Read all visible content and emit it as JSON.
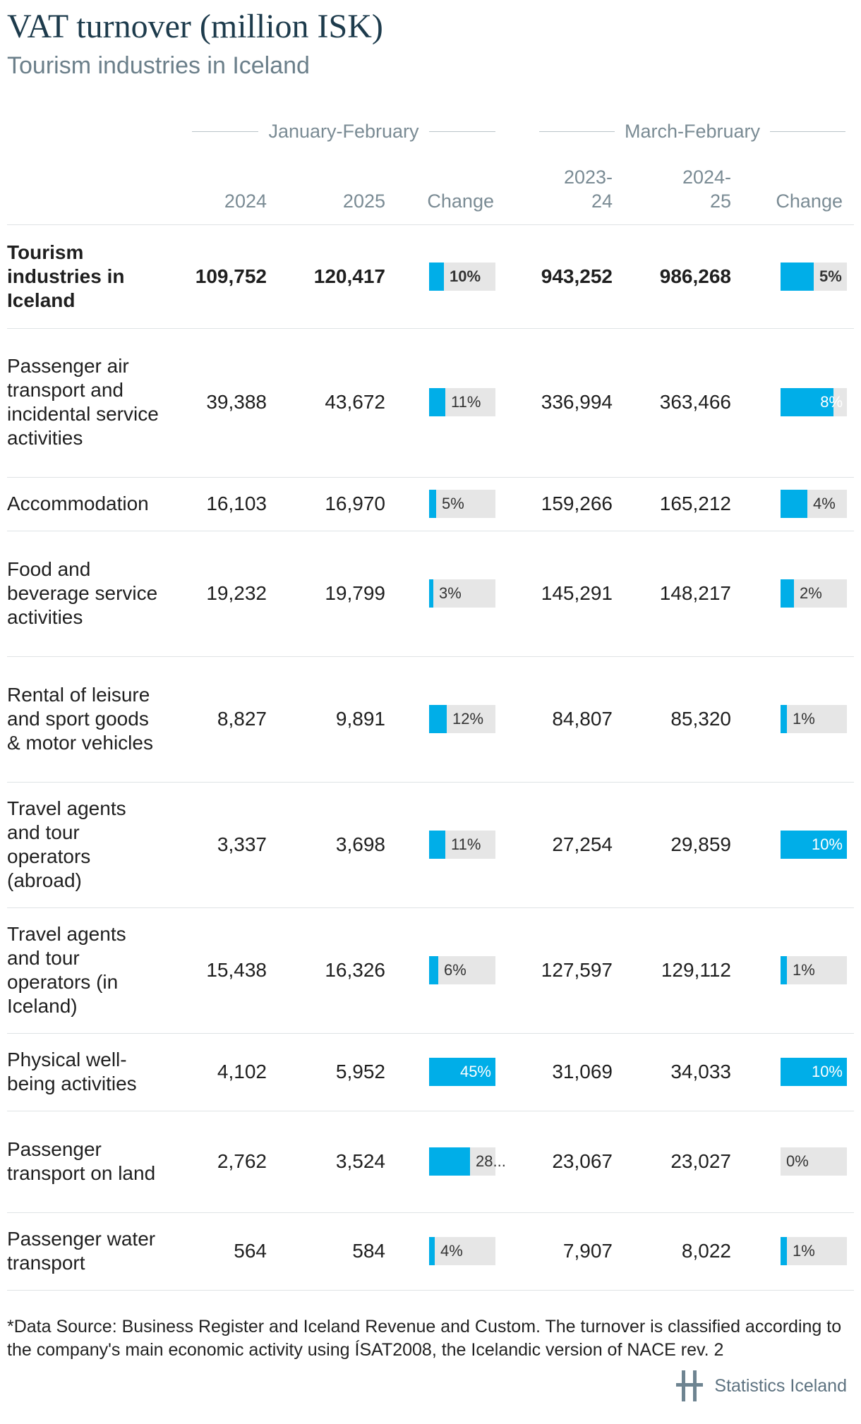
{
  "title": "VAT turnover (million ISK)",
  "subtitle": "Tourism industries in Iceland",
  "groups": {
    "left": "January-February",
    "right": "March-February"
  },
  "columns": {
    "c1": "2024",
    "c2": "2025",
    "c3": "Change",
    "c4": "2023-\n24",
    "c5": "2024-\n25",
    "c6": "Change"
  },
  "colors": {
    "bar": "#00aee8",
    "bar_track": "#e6e6e6",
    "title": "#1d3b4c"
  },
  "chart_data": {
    "type": "table",
    "title": "VAT turnover (million ISK)",
    "subtitle": "Tourism industries in Iceland",
    "rows": [
      {
        "label": "Tourism industries in Iceland",
        "bold": true,
        "jf2024": "109,752",
        "jf2025": "120,417",
        "jf_change": 10,
        "jf_change_text": "10%",
        "mf2023": "943,252",
        "mf2024": "986,268",
        "mf_change": 5,
        "mf_change_text": "5%"
      },
      {
        "label": "Passenger air transport and incidental service activities",
        "bold": false,
        "jf2024": "39,388",
        "jf2025": "43,672",
        "jf_change": 11,
        "jf_change_text": "11%",
        "mf2023": "336,994",
        "mf2024": "363,466",
        "mf_change": 8,
        "mf_change_text": "8%"
      },
      {
        "label": "Accommodation",
        "bold": false,
        "jf2024": "16,103",
        "jf2025": "16,970",
        "jf_change": 5,
        "jf_change_text": "5%",
        "mf2023": "159,266",
        "mf2024": "165,212",
        "mf_change": 4,
        "mf_change_text": "4%"
      },
      {
        "label": "Food and beverage service activities",
        "bold": false,
        "jf2024": "19,232",
        "jf2025": "19,799",
        "jf_change": 3,
        "jf_change_text": "3%",
        "mf2023": "145,291",
        "mf2024": "148,217",
        "mf_change": 2,
        "mf_change_text": "2%"
      },
      {
        "label": "Rental of leisure and sport goods & motor vehicles",
        "bold": false,
        "jf2024": "8,827",
        "jf2025": "9,891",
        "jf_change": 12,
        "jf_change_text": "12%",
        "mf2023": "84,807",
        "mf2024": "85,320",
        "mf_change": 1,
        "mf_change_text": "1%"
      },
      {
        "label": "Travel agents and tour operators (abroad)",
        "bold": false,
        "jf2024": "3,337",
        "jf2025": "3,698",
        "jf_change": 11,
        "jf_change_text": "11%",
        "mf2023": "27,254",
        "mf2024": "29,859",
        "mf_change": 10,
        "mf_change_text": "10%"
      },
      {
        "label": "Travel agents and tour operators (in Iceland)",
        "bold": false,
        "jf2024": "15,438",
        "jf2025": "16,326",
        "jf_change": 6,
        "jf_change_text": "6%",
        "mf2023": "127,597",
        "mf2024": "129,112",
        "mf_change": 1,
        "mf_change_text": "1%"
      },
      {
        "label": "Physical well-being activities",
        "bold": false,
        "jf2024": "4,102",
        "jf2025": "5,952",
        "jf_change": 45,
        "jf_change_text": "45%",
        "mf2023": "31,069",
        "mf2024": "34,033",
        "mf_change": 10,
        "mf_change_text": "10%"
      },
      {
        "label": "Passenger transport on land",
        "bold": false,
        "jf2024": "2,762",
        "jf2025": "3,524",
        "jf_change": 28,
        "jf_change_text": "28...",
        "mf2023": "23,067",
        "mf2024": "23,027",
        "mf_change": 0,
        "mf_change_text": "0%"
      },
      {
        "label": "Passenger water transport",
        "bold": false,
        "jf2024": "564",
        "jf2025": "584",
        "jf_change": 4,
        "jf_change_text": "4%",
        "mf2023": "7,907",
        "mf2024": "8,022",
        "mf_change": 1,
        "mf_change_text": "1%"
      }
    ]
  },
  "footnote": "*Data Source: Business Register and Iceland Revenue and Custom. The turnover is classified according to the company's main economic activity using ÍSAT2008, the Icelandic version of NACE rev. 2",
  "brand": "Statistics Iceland"
}
